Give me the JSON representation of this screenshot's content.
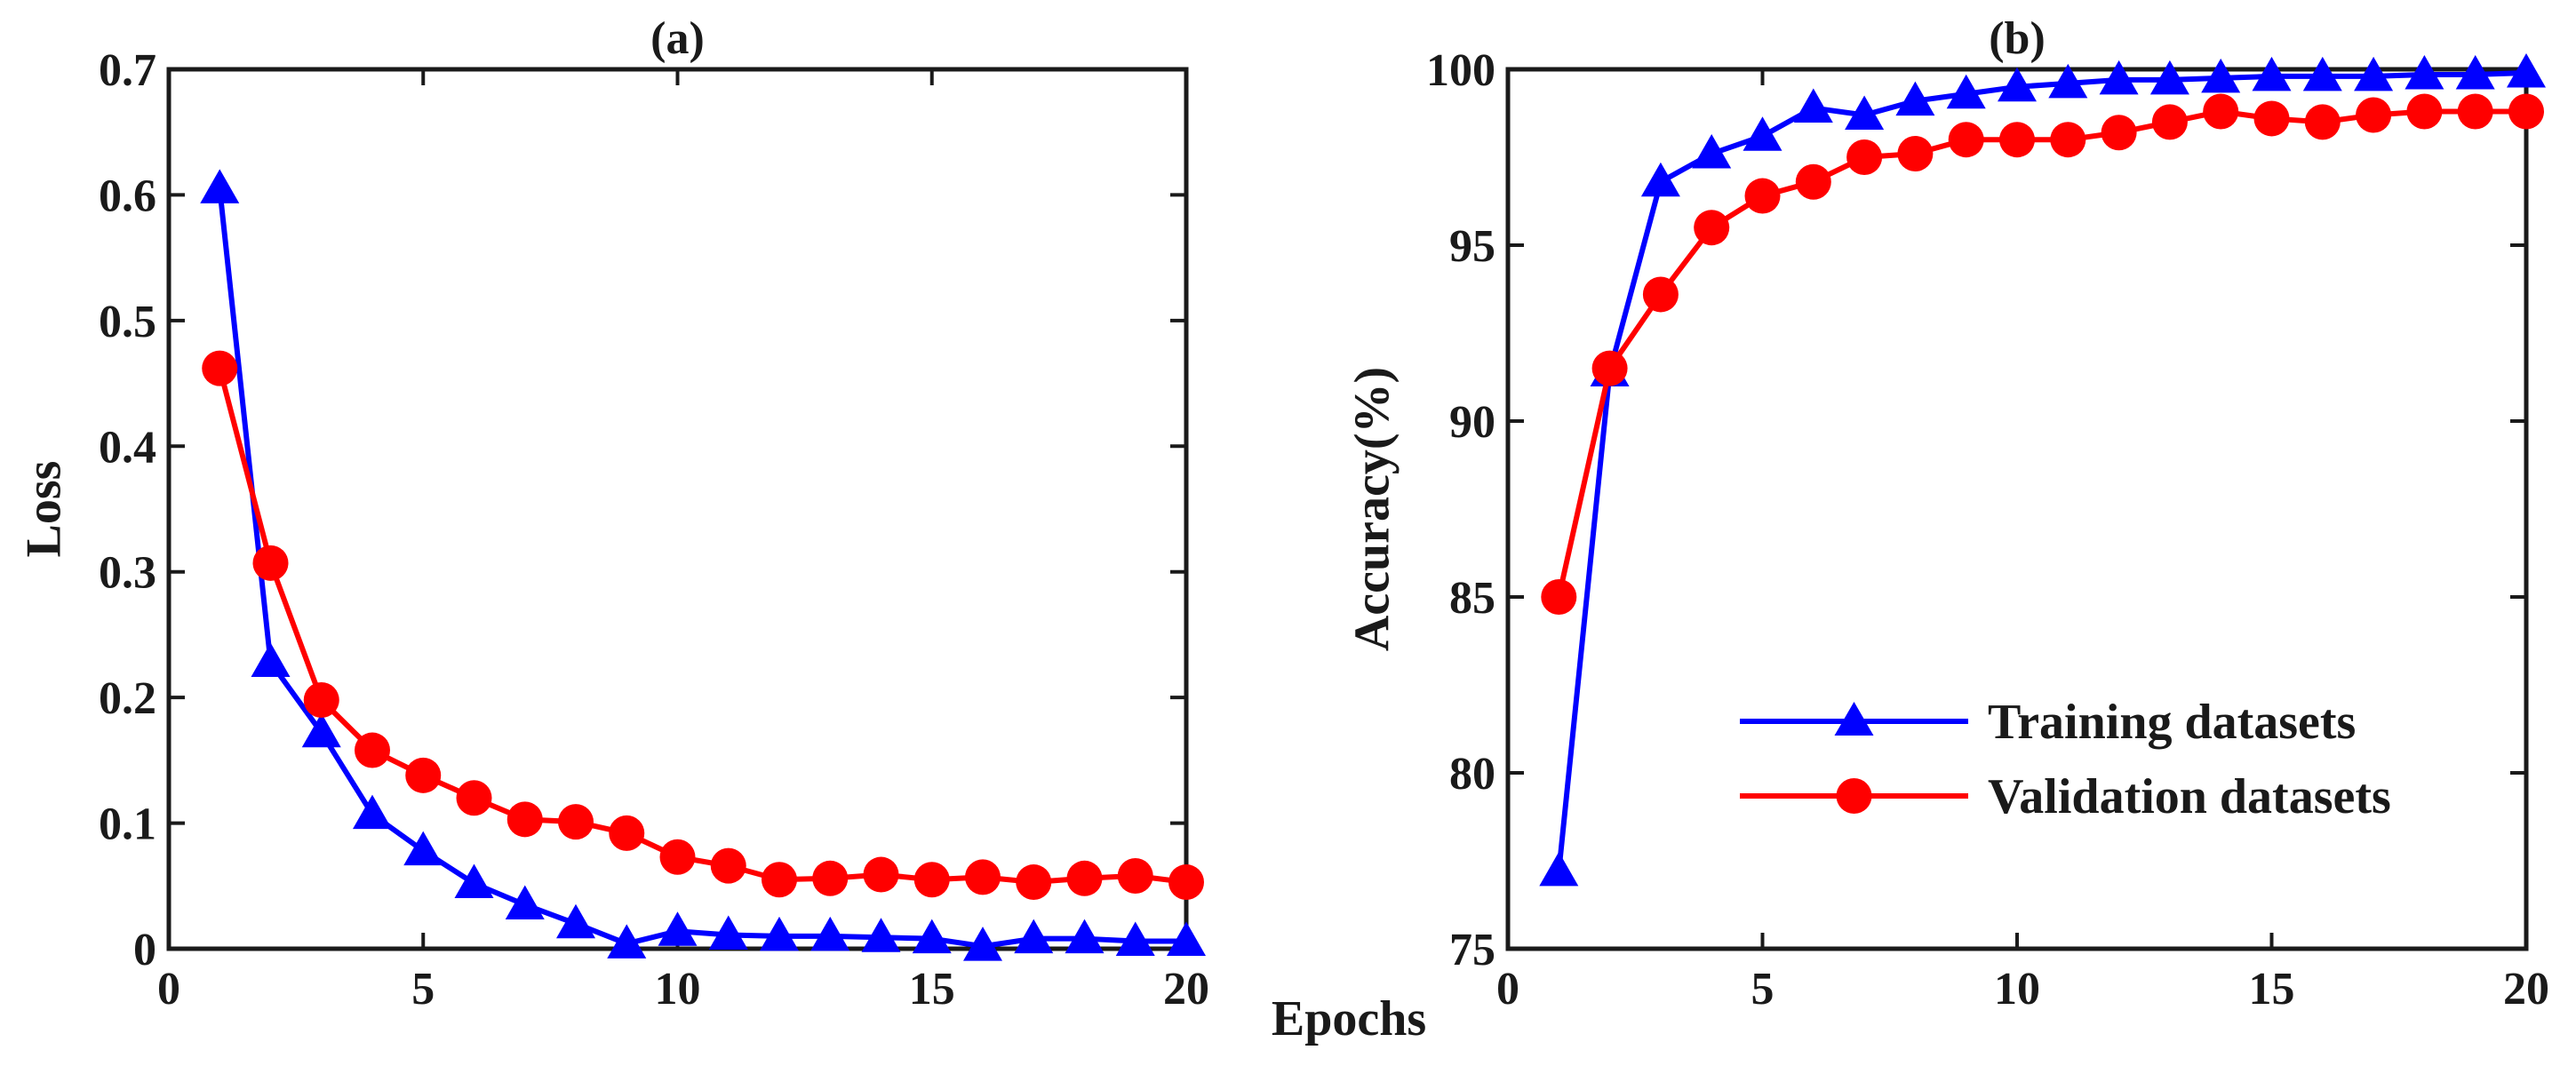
{
  "figure": {
    "shared_xlabel": "Epochs"
  },
  "chart_data": [
    {
      "id": "a",
      "type": "line",
      "title": "(a)",
      "xlabel": "",
      "ylabel": "Loss",
      "xlim": [
        0,
        20
      ],
      "ylim": [
        0,
        0.7
      ],
      "xticks": [
        0,
        5,
        10,
        15,
        20
      ],
      "xtick_labels": [
        "0",
        "5",
        "10",
        "15",
        "20"
      ],
      "yticks": [
        0,
        0.1,
        0.2,
        0.3,
        0.4,
        0.5,
        0.6,
        0.7
      ],
      "ytick_labels": [
        "0",
        "0.1",
        "0.2",
        "0.3",
        "0.4",
        "0.5",
        "0.6",
        "0.7"
      ],
      "grid": false,
      "x": [
        1,
        2,
        3,
        4,
        5,
        6,
        7,
        8,
        9,
        10,
        11,
        12,
        13,
        14,
        15,
        16,
        17,
        18,
        19,
        20
      ],
      "series": [
        {
          "name": "Training datasets",
          "color": "#0000ff",
          "marker": "triangle",
          "values": [
            0.605,
            0.228,
            0.172,
            0.107,
            0.078,
            0.052,
            0.035,
            0.02,
            0.004,
            0.014,
            0.011,
            0.01,
            0.01,
            0.009,
            0.008,
            0.002,
            0.008,
            0.008,
            0.006,
            0.006
          ]
        },
        {
          "name": "Validation datasets",
          "color": "#ff0000",
          "marker": "circle",
          "values": [
            0.462,
            0.307,
            0.198,
            0.158,
            0.138,
            0.12,
            0.103,
            0.101,
            0.092,
            0.073,
            0.066,
            0.055,
            0.056,
            0.059,
            0.055,
            0.057,
            0.053,
            0.056,
            0.058,
            0.053
          ]
        }
      ]
    },
    {
      "id": "b",
      "type": "line",
      "title": "(b)",
      "xlabel": "",
      "ylabel": "Accuracy(%)",
      "xlim": [
        0,
        20
      ],
      "ylim": [
        75,
        100
      ],
      "xticks": [
        0,
        5,
        10,
        15,
        20
      ],
      "xtick_labels": [
        "0",
        "5",
        "10",
        "15",
        "20"
      ],
      "yticks": [
        75,
        80,
        85,
        90,
        95,
        100
      ],
      "ytick_labels": [
        "75",
        "80",
        "85",
        "90",
        "95",
        "100"
      ],
      "grid": false,
      "legend_position": "bottom-right",
      "x": [
        1,
        2,
        3,
        4,
        5,
        6,
        7,
        8,
        9,
        10,
        11,
        12,
        13,
        14,
        15,
        16,
        17,
        18,
        19,
        20
      ],
      "series": [
        {
          "name": "Training datasets",
          "color": "#0000ff",
          "marker": "triangle",
          "values": [
            77.2,
            91.4,
            96.8,
            97.6,
            98.1,
            98.9,
            98.7,
            99.1,
            99.3,
            99.5,
            99.6,
            99.7,
            99.7,
            99.75,
            99.8,
            99.8,
            99.8,
            99.85,
            99.85,
            99.9
          ]
        },
        {
          "name": "Validation datasets",
          "color": "#ff0000",
          "marker": "circle",
          "values": [
            85.0,
            91.5,
            93.6,
            95.5,
            96.4,
            96.8,
            97.5,
            97.6,
            98.0,
            98.0,
            98.0,
            98.2,
            98.5,
            98.8,
            98.6,
            98.5,
            98.7,
            98.8,
            98.8,
            98.8
          ]
        }
      ]
    }
  ]
}
